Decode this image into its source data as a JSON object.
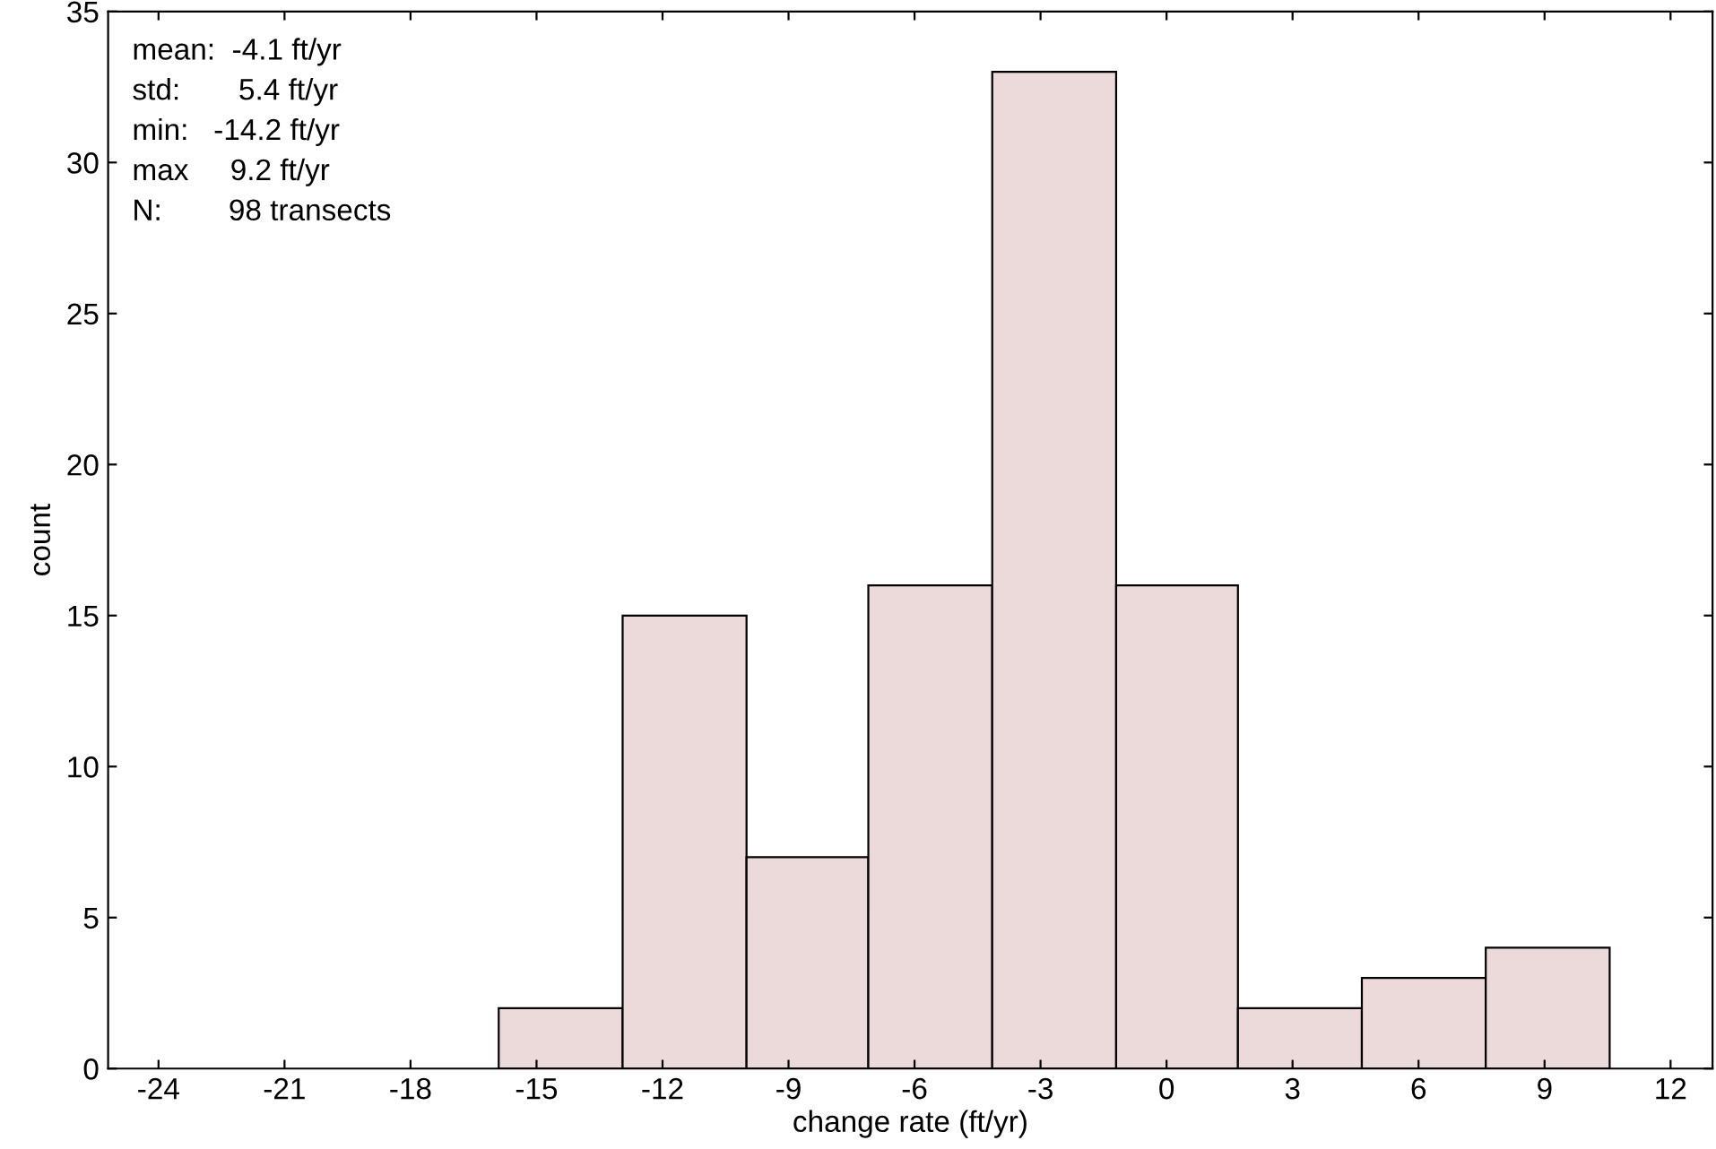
{
  "chart_data": {
    "type": "histogram",
    "xlabel": "change rate (ft/yr)",
    "ylabel": "count",
    "bins": [
      -15.9,
      -12.95,
      -10.0,
      -7.1,
      -4.15,
      -1.2,
      1.7,
      4.65,
      7.6,
      10.55
    ],
    "values": [
      2,
      15,
      7,
      16,
      33,
      16,
      2,
      3,
      4
    ],
    "color": "#ecd9d9",
    "xlim": [
      -25.2,
      13
    ],
    "xticks": [
      -24,
      -21,
      -18,
      -15,
      -12,
      -9,
      -6,
      -3,
      0,
      3,
      6,
      9,
      12
    ],
    "ylim": [
      0,
      35
    ],
    "yticks": [
      0,
      5,
      10,
      15,
      20,
      25,
      30,
      35
    ],
    "grid": false,
    "annotations": [
      "mean:  -4.1 ft/yr",
      "std:       5.4 ft/yr",
      "min:   -14.2 ft/yr",
      "max     9.2 ft/yr",
      "N:        98 transects"
    ]
  }
}
